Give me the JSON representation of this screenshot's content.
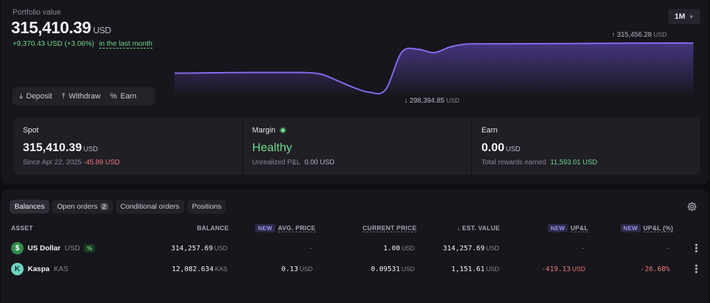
{
  "portfolio": {
    "label": "Portfolio value",
    "value": "315,410.39",
    "unit": "USD",
    "change": "+9,370.43 USD",
    "change_pct": "(+3.06%)",
    "period_text": "in the last month",
    "range": "1M",
    "high": "315,456.28",
    "low": "298,394.85",
    "hilo_unit": "USD"
  },
  "actions": [
    {
      "label": "Deposit",
      "icon": "download-icon"
    },
    {
      "label": "Withdraw",
      "icon": "upload-icon"
    },
    {
      "label": "Earn",
      "icon": "percent-icon"
    }
  ],
  "chart_data": {
    "type": "area",
    "title": "",
    "series": [
      {
        "values": [
          305000,
          305020,
          305090,
          305150,
          305220,
          305250,
          305250,
          305240,
          305200,
          304700,
          302500,
          300100,
          298394.85,
          299200,
          312200,
          313300,
          312100,
          314100,
          315100,
          315150,
          315180,
          315180,
          315210,
          315240,
          315270,
          315300,
          315330,
          315360,
          315390,
          315420,
          315440,
          315456.28,
          315410.39
        ]
      }
    ],
    "accent": "#8b6cf2"
  },
  "cards": {
    "spot": {
      "title": "Spot",
      "value": "315,410.39",
      "unit": "USD",
      "since": "Since Apr 22, 2025",
      "pnl": "-45.89 USD"
    },
    "margin": {
      "title": "Margin",
      "status": "Healthy",
      "sub_label": "Unrealized P&L",
      "sub_value": "0.00 USD"
    },
    "earn": {
      "title": "Earn",
      "value": "0.00",
      "unit": "USD",
      "sub_label": "Total rewards earned",
      "sub_value": "11,593.01 USD"
    }
  },
  "tabs": [
    {
      "label": "Balances",
      "count": ""
    },
    {
      "label": "Open orders",
      "count": "2"
    },
    {
      "label": "Conditional orders",
      "count": ""
    },
    {
      "label": "Positions",
      "count": ""
    }
  ],
  "table": {
    "headers": {
      "asset": "ASSET",
      "balance": "BALANCE",
      "avg_price": "AVG. PRICE",
      "current_price": "CURRENT PRICE",
      "est_value": "EST. VALUE",
      "upl": "UP&L",
      "upl_pct": "UP&L (%)",
      "new_badge": "NEW",
      "sort_arrow": "↓"
    },
    "rows": [
      {
        "name": "US Dollar",
        "code": "USD",
        "badge": "%",
        "icon_color": "#2f8a4e",
        "icon_glyph": "$",
        "balance": "314,257.69",
        "balance_unit": "USD",
        "avg_price": "-",
        "avg_unit": "",
        "current_price": "1.00",
        "current_unit": "USD",
        "est_value": "314,257.69",
        "est_unit": "USD",
        "upl": "-",
        "upl_unit": "",
        "upl_pct": "-"
      },
      {
        "name": "Kaspa",
        "code": "KAS",
        "badge": "",
        "icon_color": "#6fd3c0",
        "icon_glyph": "K",
        "balance": "12,082.634",
        "balance_unit": "KAS",
        "avg_price": "0.13",
        "avg_unit": "USD",
        "current_price": "0.09531",
        "current_unit": "USD",
        "est_value": "1,151.61",
        "est_unit": "USD",
        "upl": "-419.13",
        "upl_unit": "USD",
        "upl_pct": "-26.68%"
      }
    ]
  }
}
